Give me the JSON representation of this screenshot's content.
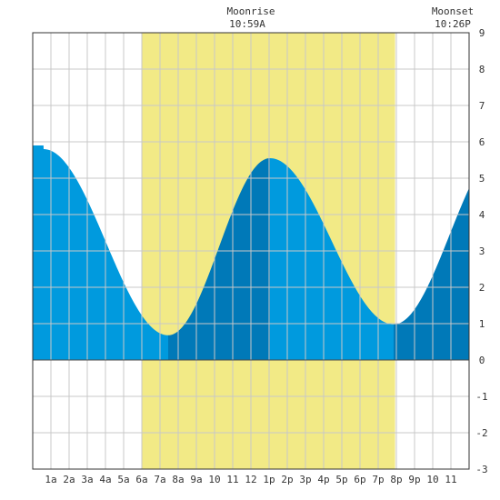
{
  "chart_data": {
    "type": "area",
    "title": "",
    "xlabel": "",
    "ylabel": "",
    "x_unit": "hours since midnight",
    "xlim": [
      -1,
      23
    ],
    "ylim": [
      -3,
      9
    ],
    "grid": true,
    "y_ticks": [
      -3,
      -2,
      -1,
      0,
      1,
      2,
      3,
      4,
      5,
      6,
      7,
      8,
      9
    ],
    "x_tick_labels": [
      {
        "hour": 0,
        "label": "1a"
      },
      {
        "hour": 1,
        "label": "2a"
      },
      {
        "hour": 2,
        "label": "3a"
      },
      {
        "hour": 3,
        "label": "4a"
      },
      {
        "hour": 4,
        "label": "5a"
      },
      {
        "hour": 5,
        "label": "6a"
      },
      {
        "hour": 6,
        "label": "7a"
      },
      {
        "hour": 7,
        "label": "8a"
      },
      {
        "hour": 8,
        "label": "9a"
      },
      {
        "hour": 9,
        "label": "10"
      },
      {
        "hour": 10,
        "label": "11"
      },
      {
        "hour": 11,
        "label": "12"
      },
      {
        "hour": 12,
        "label": "1p"
      },
      {
        "hour": 13,
        "label": "2p"
      },
      {
        "hour": 14,
        "label": "3p"
      },
      {
        "hour": 15,
        "label": "4p"
      },
      {
        "hour": 16,
        "label": "5p"
      },
      {
        "hour": 17,
        "label": "6p"
      },
      {
        "hour": 18,
        "label": "7p"
      },
      {
        "hour": 19,
        "label": "8p"
      },
      {
        "hour": 20,
        "label": "9p"
      },
      {
        "hour": 21,
        "label": "10"
      },
      {
        "hour": 22,
        "label": "11"
      }
    ],
    "moon_window": {
      "start_hour": 4.98,
      "end_hour": 18.93
    },
    "moonrise": {
      "title": "Moonrise",
      "time": "10:59A"
    },
    "moonset": {
      "title": "Moonset",
      "time": "10:26P"
    },
    "tide_extremes": [
      {
        "hour": -0.4,
        "height": 5.8
      },
      {
        "hour": 6.45,
        "height": 0.68
      },
      {
        "hour": 12.05,
        "height": 5.55
      },
      {
        "hour": 18.85,
        "height": 0.98
      },
      {
        "hour": 25.0,
        "height": 5.9
      }
    ],
    "colors": {
      "moon_window": "#f2ea86",
      "tide_light": "#009ade",
      "tide_dark": "#0079b8",
      "grid": "#c8c8c8",
      "border": "#333333"
    }
  }
}
